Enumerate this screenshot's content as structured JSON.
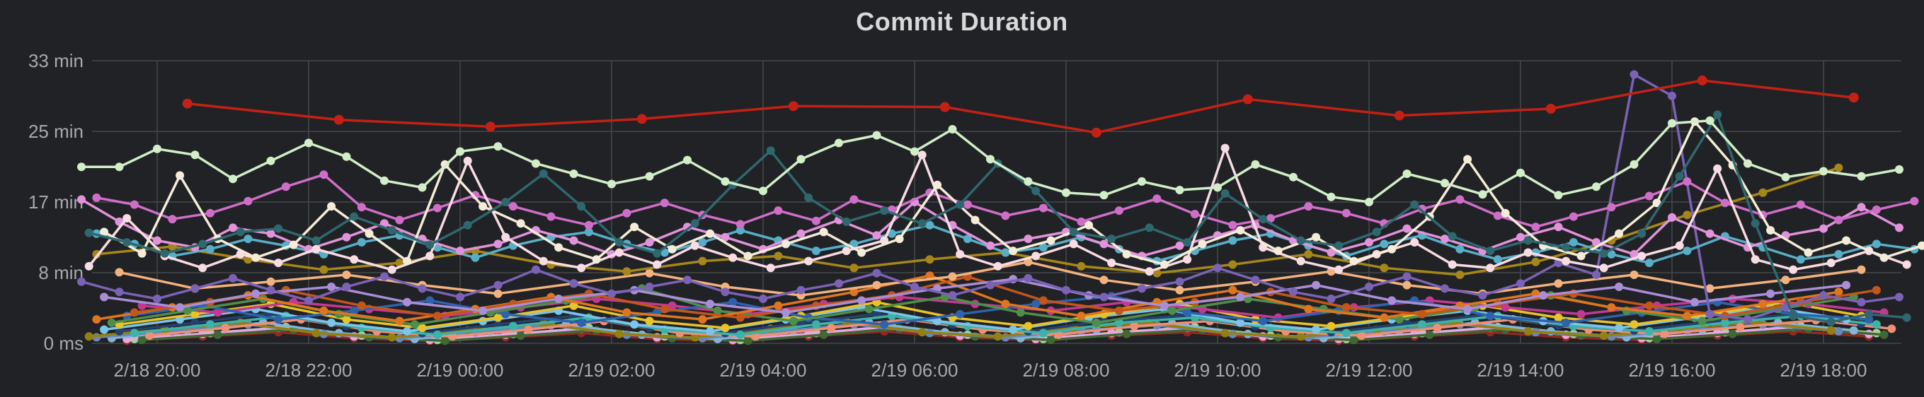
{
  "panel": {
    "title": "Commit Duration"
  },
  "colors": {
    "background": "#212225",
    "grid": "#45474a",
    "title_text": "#d8d9da",
    "axis_text": "#a7aaad"
  },
  "chart_data": {
    "type": "line",
    "title": "Commit Duration",
    "legend": false,
    "grid": true,
    "markers": true,
    "x_axis": {
      "unit": "time",
      "note": "x values are hours elapsed since 2/18 18:00",
      "range_hours": [
        0.9,
        25.35
      ],
      "ticks": [
        {
          "hour": 2,
          "label": "2/18 20:00"
        },
        {
          "hour": 4,
          "label": "2/18 22:00"
        },
        {
          "hour": 6,
          "label": "2/19 00:00"
        },
        {
          "hour": 8,
          "label": "2/19 02:00"
        },
        {
          "hour": 10,
          "label": "2/19 04:00"
        },
        {
          "hour": 12,
          "label": "2/19 06:00"
        },
        {
          "hour": 14,
          "label": "2/19 08:00"
        },
        {
          "hour": 16,
          "label": "2/19 10:00"
        },
        {
          "hour": 18,
          "label": "2/19 12:00"
        },
        {
          "hour": 20,
          "label": "2/19 14:00"
        },
        {
          "hour": 22,
          "label": "2/19 16:00"
        },
        {
          "hour": 24,
          "label": "2/19 18:00"
        }
      ]
    },
    "y_axis": {
      "unit": "minutes",
      "range": [
        0,
        36.5
      ],
      "ticks": [
        {
          "value": 0,
          "label": "0 ms"
        },
        {
          "value": 8.25,
          "label": "8 min"
        },
        {
          "value": 16.5,
          "label": "17 min"
        },
        {
          "value": 24.75,
          "label": "25 min"
        },
        {
          "value": 33,
          "label": "33 min"
        }
      ]
    },
    "series": [
      {
        "name": "dark-red",
        "color": "#93291e",
        "x0": 1.6,
        "dt": 1,
        "values": [
          0.3,
          0.8,
          1.3,
          0.6,
          0.3,
          0.7,
          1.2,
          0.5,
          0.3,
          0.8,
          1.4,
          0.7,
          0.4,
          0.9,
          1.3,
          0.6,
          0.3,
          0.8,
          1.3,
          0.7,
          0.4,
          0.9,
          1.4,
          0.8
        ]
      },
      {
        "name": "light-green",
        "color": "#a3d492",
        "x0": 1.7,
        "dt": 1,
        "values": [
          0.5,
          1.2,
          1.9,
          0.9,
          0.4,
          1.1,
          1.8,
          0.8,
          0.4,
          1.2,
          2.0,
          1.0,
          0.5,
          1.3,
          1.9,
          0.9,
          0.5,
          1.2,
          1.9,
          1.1,
          0.6,
          1.3,
          2.0,
          1.2
        ]
      },
      {
        "name": "pale-pink",
        "color": "#e5a8e2",
        "x0": 1.6,
        "dt": 1,
        "values": [
          0.5,
          1.1,
          1.8,
          0.8,
          0.4,
          1.0,
          1.7,
          0.7,
          0.4,
          1.1,
          1.9,
          0.9,
          0.5,
          1.2,
          1.8,
          0.8,
          0.5,
          1.1,
          1.8,
          1.0,
          0.6,
          1.2,
          1.9,
          1.1
        ]
      },
      {
        "name": "dark-green",
        "color": "#3f6833",
        "x0": 1.8,
        "dt": 1,
        "values": [
          0.4,
          1.0,
          1.6,
          0.7,
          0.3,
          0.9,
          1.5,
          0.6,
          0.3,
          1.0,
          1.7,
          0.8,
          0.4,
          1.1,
          1.6,
          0.7,
          0.4,
          1.0,
          1.6,
          0.9,
          0.5,
          1.1,
          1.7,
          1.0
        ]
      },
      {
        "name": "steel-blue",
        "color": "#82b5d8",
        "x0": 1.4,
        "dt": 1,
        "values": [
          0.6,
          1.5,
          2.4,
          1.2,
          0.5,
          1.4,
          2.2,
          1.0,
          0.5,
          1.5,
          2.4,
          1.3,
          0.6,
          1.6,
          2.3,
          1.1,
          0.6,
          1.5,
          2.4,
          1.4,
          0.7,
          1.6,
          2.4,
          1.5
        ]
      },
      {
        "name": "slate",
        "color": "#6b87b8",
        "x0": 1.2,
        "dt": 1,
        "values": [
          0.7,
          1.4,
          2.2,
          1.1,
          0.6,
          1.3,
          2.1,
          1.0,
          0.6,
          1.4,
          2.2,
          1.2,
          0.7,
          1.5,
          2.1,
          1.1,
          0.7,
          1.4,
          2.2,
          1.3,
          0.8,
          1.5,
          2.2,
          1.4
        ]
      },
      {
        "name": "olive",
        "color": "#918012",
        "x0": 1.1,
        "dt": 1,
        "values": [
          0.8,
          1.6,
          2.4,
          1.2,
          0.7,
          1.5,
          2.3,
          1.1,
          0.7,
          1.7,
          2.5,
          1.3,
          0.8,
          1.8,
          2.4,
          1.2,
          0.8,
          1.6,
          2.4,
          1.4,
          0.9,
          1.7,
          2.5,
          1.5
        ]
      },
      {
        "name": "salmon",
        "color": "#ef8f75",
        "x0": 1.9,
        "dt": 1,
        "values": [
          0.9,
          1.8,
          2.8,
          1.4,
          0.8,
          1.6,
          2.6,
          1.2,
          0.8,
          1.8,
          2.8,
          1.6,
          1.0,
          2.0,
          2.6,
          1.4,
          0.9,
          1.8,
          2.8,
          1.6,
          1.1,
          1.9,
          2.7,
          1.7
        ]
      },
      {
        "name": "navy",
        "color": "#24426e",
        "x0": 1.5,
        "dt": 1,
        "values": [
          1.4,
          2.4,
          3.5,
          2.0,
          1.2,
          2.2,
          3.2,
          1.8,
          1.2,
          2.4,
          3.4,
          2.2,
          1.4,
          2.6,
          3.2,
          2.0,
          1.3,
          2.3,
          3.3,
          2.1,
          1.5,
          2.5,
          3.3,
          2.3
        ]
      },
      {
        "name": "turquoise",
        "color": "#3cb3a8",
        "x0": 1.7,
        "dt": 1,
        "values": [
          1.2,
          2.2,
          3.2,
          1.8,
          1.0,
          2.0,
          3.0,
          1.6,
          1.0,
          2.2,
          3.2,
          2.0,
          1.2,
          2.4,
          3.0,
          1.8,
          1.2,
          2.2,
          3.2,
          2.0,
          1.4,
          2.4,
          3.2,
          2.2
        ]
      },
      {
        "name": "sky-blue",
        "color": "#7cc4e8",
        "x0": 1.3,
        "dt": 1,
        "values": [
          1.6,
          2.8,
          4.0,
          2.4,
          1.4,
          2.6,
          3.8,
          2.2,
          1.4,
          2.8,
          4.2,
          2.6,
          1.6,
          3.0,
          4.0,
          2.4,
          1.6,
          2.8,
          3.8,
          2.6,
          1.8,
          3.0,
          4.2,
          2.8
        ]
      },
      {
        "name": "yellow",
        "color": "#e7c32a",
        "x0": 1.5,
        "dt": 1,
        "values": [
          2.2,
          3.4,
          4.6,
          2.8,
          1.8,
          3.0,
          4.4,
          2.6,
          1.8,
          3.2,
          4.8,
          3.0,
          2.0,
          3.4,
          4.6,
          2.8,
          2.0,
          3.2,
          4.4,
          3.0,
          2.2,
          3.4,
          4.8,
          3.2
        ]
      },
      {
        "name": "magenta",
        "color": "#c13a92",
        "x0": 1.8,
        "dt": 1,
        "values": [
          4.4,
          3.6,
          4.8,
          4.0,
          3.2,
          4.2,
          5.2,
          4.4,
          3.4,
          4.6,
          5.4,
          4.6,
          3.8,
          4.8,
          4.0,
          3.0,
          4.2,
          5.0,
          4.2,
          3.4,
          4.4,
          5.2,
          4.6,
          3.6
        ]
      },
      {
        "name": "blue",
        "color": "#2f62ad",
        "x0": 1.6,
        "dt": 1,
        "values": [
          3.2,
          4.4,
          2.8,
          3.8,
          5.0,
          3.4,
          2.4,
          3.6,
          4.8,
          3.0,
          2.2,
          3.4,
          4.6,
          5.5,
          3.6,
          2.6,
          3.8,
          5.0,
          3.2,
          2.4,
          3.6,
          4.8,
          3.4,
          2.8
        ]
      },
      {
        "name": "green",
        "color": "#4f8e4a",
        "x0": 1.4,
        "dt": 1,
        "values": [
          2.4,
          3.8,
          5.2,
          3.4,
          2.2,
          3.6,
          5.0,
          6.4,
          3.8,
          2.6,
          4.0,
          5.4,
          3.6,
          2.4,
          3.8,
          5.2,
          4.0,
          2.8,
          4.2,
          5.6,
          3.8,
          2.6,
          4.0,
          5.4
        ]
      },
      {
        "name": "orange",
        "color": "#e0751f",
        "x0": 1.2,
        "dt": 1,
        "values": [
          2.8,
          4.2,
          5.6,
          3.8,
          2.6,
          4.0,
          5.4,
          3.6,
          2.8,
          4.4,
          6.0,
          7.9,
          4.6,
          3.2,
          4.8,
          6.2,
          4.0,
          3.0,
          4.4,
          5.8,
          4.2,
          3.2,
          4.6,
          6.0
        ]
      },
      {
        "name": "rust",
        "color": "#c2561b",
        "x0": 1.7,
        "dt": 1,
        "values": [
          3.6,
          4.8,
          6.2,
          4.4,
          3.2,
          4.6,
          5.8,
          4.0,
          3.0,
          4.4,
          5.6,
          7.8,
          5.0,
          3.8,
          4.8,
          6.0,
          4.2,
          3.4,
          4.6,
          5.8,
          4.4,
          3.2,
          4.8,
          6.2
        ]
      },
      {
        "name": "light-violet",
        "color": "#a98ed6",
        "x0": 1.3,
        "dt": 1,
        "values": [
          5.4,
          4.2,
          5.8,
          6.6,
          4.8,
          3.8,
          5.2,
          6.2,
          4.6,
          3.6,
          5.0,
          6.4,
          7.5,
          5.6,
          4.4,
          5.4,
          6.8,
          5.0,
          4.0,
          5.6,
          6.6,
          4.8,
          5.8,
          6.8
        ]
      },
      {
        "name": "peach",
        "color": "#f2b27e",
        "x0": 1.5,
        "dt": 1,
        "values": [
          8.3,
          6.4,
          7.2,
          8.0,
          6.8,
          5.8,
          7.0,
          8.2,
          6.6,
          5.6,
          6.8,
          7.8,
          9.5,
          7.4,
          6.2,
          7.2,
          8.4,
          6.8,
          5.8,
          7.0,
          8.0,
          6.4,
          7.4,
          8.6
        ]
      },
      {
        "name": "gold",
        "color": "#a5861a",
        "x0": 1.2,
        "dt": 1,
        "values": [
          10.4,
          11.3,
          9.8,
          8.6,
          9.4,
          10.8,
          9.2,
          8.4,
          9.6,
          10.2,
          8.8,
          9.8,
          10.6,
          9.0,
          8.2,
          9.2,
          10.4,
          8.8,
          8.0,
          9.5,
          12.0,
          15.0,
          17.6,
          20.5
        ]
      },
      {
        "name": "purple",
        "color": "#7a62b5",
        "x0": 1.0,
        "dt": 0.5,
        "values": [
          7.2,
          6.0,
          5.2,
          6.4,
          7.6,
          6.2,
          5.0,
          6.6,
          7.8,
          6.4,
          5.4,
          6.8,
          8.6,
          7.0,
          5.8,
          6.6,
          7.4,
          6.0,
          5.2,
          6.2,
          7.0,
          8.2,
          6.6,
          5.6,
          6.8,
          7.6,
          6.2,
          5.4,
          6.4,
          7.2,
          8.8,
          7.4,
          6.0,
          5.2,
          6.6,
          7.8,
          6.4,
          5.6,
          7.0,
          9.4,
          8.0,
          31.4,
          28.9,
          3.4,
          2.8,
          4.2,
          5.6,
          4.8,
          5.4
        ]
      },
      {
        "name": "cyan",
        "color": "#58aec6",
        "x0": 1.2,
        "dt": 0.5,
        "values": [
          12.8,
          11.6,
          10.2,
          11.0,
          12.2,
          11.4,
          10.4,
          11.8,
          12.6,
          11.2,
          10.0,
          11.4,
          12.4,
          13.0,
          11.6,
          10.6,
          11.8,
          13.2,
          12.0,
          10.8,
          11.6,
          12.8,
          13.8,
          12.2,
          10.6,
          11.2,
          12.4,
          11.0,
          9.6,
          10.8,
          12.0,
          12.8,
          11.4,
          10.2,
          11.6,
          12.6,
          11.0,
          9.8,
          10.6,
          11.8,
          10.4,
          9.4,
          10.8,
          12.5,
          11.2,
          9.8,
          10.4,
          11.6,
          11.0
        ]
      },
      {
        "name": "plum",
        "color": "#e093da",
        "x0": 1.0,
        "dt": 0.5,
        "values": [
          16.8,
          14.2,
          12.0,
          11.2,
          13.5,
          12.8,
          11.0,
          12.4,
          14.0,
          12.2,
          10.8,
          11.6,
          13.2,
          12.0,
          10.4,
          11.8,
          13.6,
          12.4,
          11.0,
          12.8,
          14.4,
          12.6,
          16.5,
          13.8,
          11.4,
          12.2,
          13.0,
          11.6,
          10.2,
          11.4,
          12.6,
          13.8,
          12.0,
          10.6,
          11.8,
          13.4,
          12.2,
          10.8,
          12.4,
          13.6,
          11.8,
          10.4,
          14.7,
          12.8,
          11.2,
          12.6,
          13.4,
          15.9,
          13.5
        ]
      },
      {
        "name": "orchid",
        "color": "#cf6ec9",
        "x0": 1.2,
        "dt": 0.5,
        "values": [
          17.0,
          16.2,
          14.5,
          15.2,
          16.6,
          18.3,
          19.7,
          15.9,
          14.4,
          15.8,
          17.3,
          16.0,
          14.8,
          13.8,
          15.2,
          16.4,
          15.0,
          13.9,
          15.5,
          14.3,
          16.8,
          15.6,
          17.6,
          16.2,
          14.9,
          15.8,
          14.2,
          15.5,
          16.9,
          15.1,
          13.8,
          14.6,
          16.0,
          15.2,
          14.0,
          15.7,
          16.8,
          14.9,
          13.6,
          14.8,
          15.9,
          17.2,
          18.9,
          16.4,
          15.0,
          16.2,
          14.4,
          15.6,
          16.6
        ]
      },
      {
        "name": "blush",
        "color": "#f8dce4",
        "x0": 1.1,
        "dt": 0.5,
        "values": [
          9.0,
          14.6,
          10.2,
          8.8,
          10.4,
          9.4,
          11.0,
          9.8,
          8.6,
          10.2,
          21.3,
          12.4,
          9.6,
          8.8,
          10.6,
          9.2,
          11.4,
          10.0,
          8.8,
          9.6,
          10.8,
          12.0,
          22.0,
          10.4,
          9.0,
          10.2,
          11.6,
          9.4,
          8.4,
          9.8,
          22.8,
          11.2,
          9.6,
          8.6,
          10.4,
          11.8,
          9.2,
          8.8,
          10.6,
          9.6,
          8.8,
          10.2,
          11.4,
          20.4,
          9.8,
          8.6,
          9.4,
          10.8,
          9.2
        ]
      },
      {
        "name": "cream",
        "color": "#f4ecd8",
        "x0": 1.3,
        "dt": 0.5,
        "values": [
          13.0,
          10.5,
          19.6,
          12.2,
          10.0,
          11.5,
          16.0,
          12.8,
          9.6,
          20.9,
          16.0,
          14.0,
          11.2,
          9.8,
          13.6,
          11.0,
          12.8,
          10.2,
          11.6,
          13.0,
          10.6,
          12.2,
          18.5,
          14.4,
          10.8,
          12.0,
          13.8,
          10.4,
          9.2,
          11.6,
          13.2,
          10.8,
          12.4,
          9.6,
          11.0,
          14.8,
          21.5,
          15.2,
          11.4,
          10.2,
          12.8,
          16.4,
          25.9,
          20.8,
          13.2,
          10.6,
          12.0,
          10.0,
          11.4
        ]
      },
      {
        "name": "teal",
        "color": "#2f676e",
        "x0": 1.1,
        "dt": 0.5,
        "values": [
          12.9,
          11.8,
          10.5,
          11.6,
          13.0,
          13.4,
          12.0,
          14.8,
          13.2,
          11.5,
          13.8,
          16.5,
          19.8,
          16.0,
          11.8,
          10.5,
          14.0,
          18.5,
          22.5,
          17.0,
          14.2,
          15.5,
          14.0,
          16.2,
          21.0,
          17.8,
          13.0,
          12.2,
          13.5,
          11.8,
          17.5,
          14.5,
          12.0,
          11.4,
          13.0,
          16.2,
          12.5,
          10.8,
          12.0,
          11.2,
          10.5,
          12.8,
          19.5,
          26.7,
          14.0,
          3.2,
          2.5,
          3.4,
          3.0
        ]
      },
      {
        "name": "pale-green",
        "color": "#d2eec8",
        "x0": 1.0,
        "dt": 0.5,
        "values": [
          20.6,
          20.6,
          22.7,
          22.0,
          19.2,
          21.3,
          23.4,
          21.8,
          19.0,
          18.2,
          22.4,
          23.0,
          21.0,
          19.8,
          18.6,
          19.5,
          21.4,
          18.9,
          17.8,
          21.5,
          23.4,
          24.3,
          22.4,
          25.0,
          21.5,
          18.9,
          17.6,
          17.3,
          18.9,
          17.9,
          18.2,
          20.9,
          19.4,
          17.1,
          16.5,
          19.8,
          18.7,
          17.4,
          19.9,
          17.3,
          18.3,
          20.9,
          25.7,
          26.0,
          21.0,
          19.4,
          20.1,
          19.5,
          20.3
        ]
      },
      {
        "name": "red",
        "color": "#c42116",
        "x0": 2.4,
        "dt": 2,
        "marker_r": 7,
        "values": [
          28.0,
          26.1,
          25.3,
          26.2,
          27.7,
          27.6,
          24.6,
          28.5,
          26.6,
          27.4,
          30.7,
          28.7
        ]
      }
    ]
  }
}
